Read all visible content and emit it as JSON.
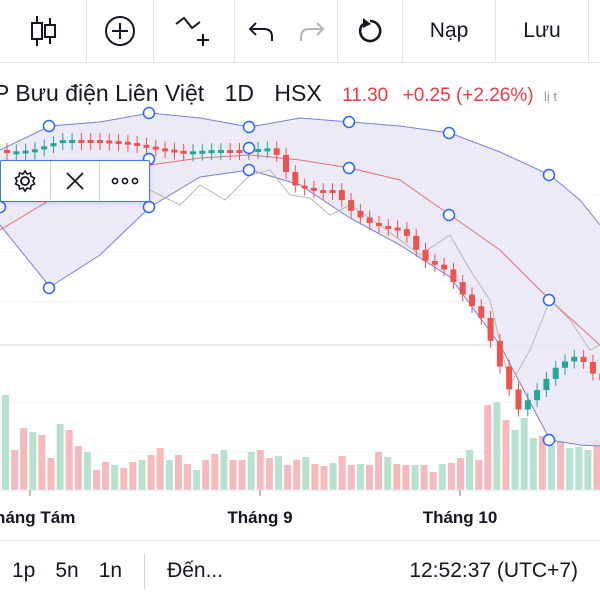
{
  "toolbar": {
    "icons": [
      "candles-icon",
      "add-indicator-icon",
      "draw-line-icon",
      "undo-icon",
      "redo-icon",
      "reload-icon"
    ],
    "load_label": "Nạp",
    "save_label": "Lưu"
  },
  "legend": {
    "symbol": "P Bưu điện Liên Việt",
    "interval": "1D",
    "exchange": "HSX",
    "price": "11.30",
    "change": "+0.25 (+2.26%)",
    "overlay_text": "lị t"
  },
  "colors": {
    "up": "#26a69a",
    "down": "#ef5350",
    "band_fill": "#e8e6f5",
    "band_line": "#7b7fd6",
    "ma_line": "#e57373",
    "selection": "#2962ff"
  },
  "axis": {
    "months": [
      "Tháng Tám",
      "Tháng 9",
      "Tháng 10"
    ]
  },
  "bottom": {
    "ranges": [
      "1p",
      "5n",
      "1n"
    ],
    "goto_label": "Đến...",
    "clock": "12:52:37 (UTC+7)"
  }
}
